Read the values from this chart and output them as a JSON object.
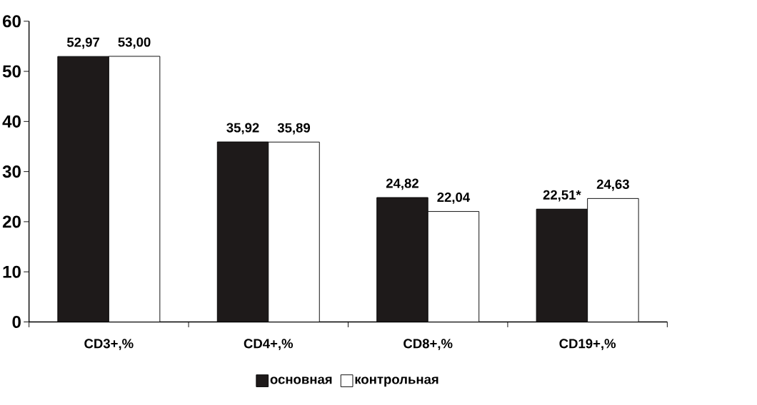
{
  "chart_data": {
    "type": "bar",
    "categories": [
      "CD3+,%",
      "CD4+,%",
      "CD8+,%",
      "CD19+,%"
    ],
    "series": [
      {
        "name": "основная",
        "color": "#1e1a1a",
        "values": [
          52.97,
          35.92,
          24.82,
          22.51
        ],
        "value_labels": [
          "52,97",
          "35,92",
          "24,82",
          "22,51*"
        ]
      },
      {
        "name": "контрольная",
        "color": "#ffffff",
        "values": [
          53.0,
          35.89,
          22.04,
          24.63
        ],
        "value_labels": [
          "53,00",
          "35,89",
          "22,04",
          "24,63"
        ]
      }
    ],
    "ylim": [
      0,
      60
    ],
    "yticks": [
      0,
      10,
      20,
      30,
      40,
      50,
      60
    ],
    "legend": "bottom"
  }
}
